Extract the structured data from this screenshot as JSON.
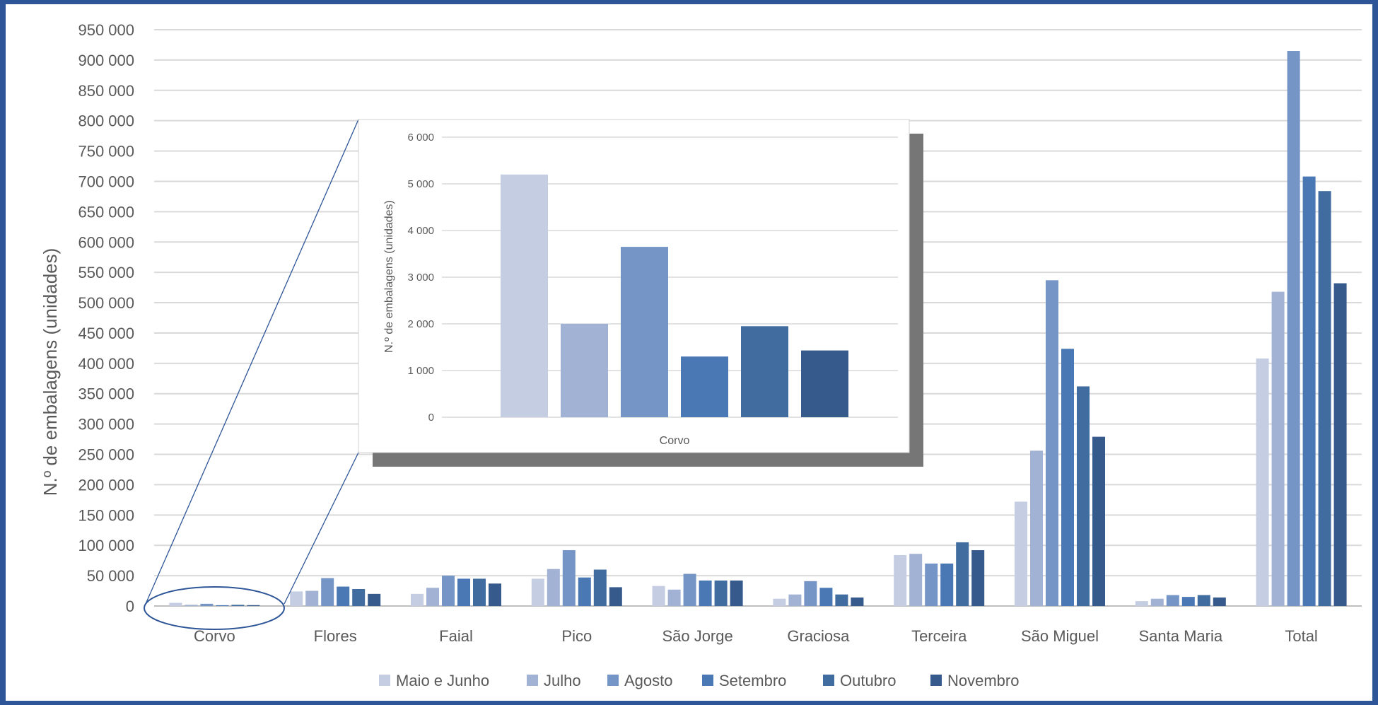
{
  "colors": {
    "series": [
      "#c4cde2",
      "#a2b2d4",
      "#7495c6",
      "#4a78b5",
      "#416ca0",
      "#365a8b"
    ],
    "grid": "#d9d9d9",
    "text": "#595959",
    "zoom_line": "#2e5597",
    "inset_shadow": "#767676"
  },
  "chart_data": [
    {
      "type": "bar",
      "title": "",
      "ylabel": "N.º de embalagens (unidades)",
      "xlabel": "",
      "ylim": [
        0,
        950000
      ],
      "ytick_step": 50000,
      "yticks": [
        "0",
        "50 000",
        "100 000",
        "150 000",
        "200 000",
        "250 000",
        "300 000",
        "350 000",
        "400 000",
        "450 000",
        "500 000",
        "550 000",
        "600 000",
        "650 000",
        "700 000",
        "750 000",
        "800 000",
        "850 000",
        "900 000",
        "950 000"
      ],
      "grid": true,
      "legend": "bottom",
      "categories": [
        "Corvo",
        "Flores",
        "Faial",
        "Pico",
        "São Jorge",
        "Graciosa",
        "Terceira",
        "São Miguel",
        "Santa Maria",
        "Total"
      ],
      "series": [
        {
          "name": "Maio e Junho",
          "values": [
            5200,
            24000,
            20000,
            45000,
            33000,
            12000,
            84000,
            172000,
            8000,
            408000
          ]
        },
        {
          "name": "Julho",
          "values": [
            2000,
            25000,
            30000,
            61000,
            27000,
            19000,
            86000,
            256000,
            12000,
            518000
          ]
        },
        {
          "name": "Agosto",
          "values": [
            3650,
            46000,
            50000,
            92000,
            53000,
            41000,
            70000,
            537000,
            18000,
            915000
          ]
        },
        {
          "name": "Setembro",
          "values": [
            1300,
            32000,
            45000,
            47000,
            42000,
            30000,
            70000,
            424000,
            15000,
            708000
          ]
        },
        {
          "name": "Outubro",
          "values": [
            1950,
            28000,
            45000,
            60000,
            42000,
            19000,
            105000,
            362000,
            18000,
            684000
          ]
        },
        {
          "name": "Novembro",
          "values": [
            1430,
            20000,
            37000,
            31000,
            42000,
            14000,
            92000,
            279000,
            14000,
            532000
          ]
        }
      ]
    },
    {
      "type": "bar",
      "title": "",
      "ylabel": "N.º de embalagens (unidades)",
      "xlabel": "",
      "ylim": [
        0,
        6000
      ],
      "ytick_step": 1000,
      "yticks": [
        "0",
        "1 000",
        "2 000",
        "3 000",
        "4 000",
        "5 000",
        "6 000"
      ],
      "grid": true,
      "legend": "none",
      "categories": [
        "Corvo"
      ],
      "series": [
        {
          "name": "Maio e Junho",
          "values": [
            5200
          ]
        },
        {
          "name": "Julho",
          "values": [
            2000
          ]
        },
        {
          "name": "Agosto",
          "values": [
            3650
          ]
        },
        {
          "name": "Setembro",
          "values": [
            1300
          ]
        },
        {
          "name": "Outubro",
          "values": [
            1950
          ]
        },
        {
          "name": "Novembro",
          "values": [
            1430
          ]
        }
      ]
    }
  ]
}
